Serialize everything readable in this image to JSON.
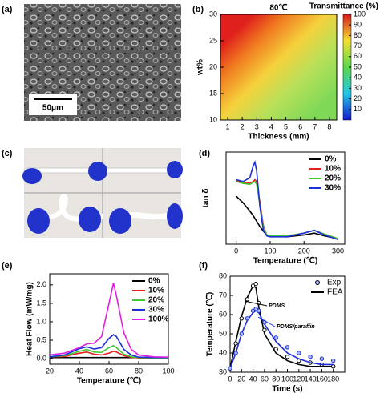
{
  "chart_data": [
    {
      "type": "image",
      "panel_label": "(a)",
      "scale_bar": "50μm"
    },
    {
      "type": "heatmap",
      "panel_label": "(b)",
      "title": "80℃",
      "colorbar_label": "Transmittance (%)",
      "x_label": "Thickness (mm)",
      "y_label": "wt%",
      "xlim": [
        0.5,
        8.5
      ],
      "xticks": [
        1,
        2,
        3,
        4,
        5,
        6,
        7,
        8
      ],
      "ylim": [
        10,
        30
      ],
      "yticks": [
        10,
        15,
        20,
        25,
        30
      ],
      "clim": [
        0,
        100
      ],
      "cticks": [
        10,
        20,
        30,
        40,
        50,
        60,
        70,
        80,
        90,
        100
      ]
    },
    {
      "type": "image",
      "panel_label": "(c)"
    },
    {
      "type": "line",
      "panel_label": "(d)",
      "x_label": "Temperature (℃)",
      "y_label": "tan δ",
      "x": [
        0,
        20,
        40,
        50,
        55,
        60,
        70,
        80,
        90,
        100,
        150,
        200,
        230,
        260,
        300
      ],
      "xlim": [
        -30,
        320
      ],
      "xticks": [
        0,
        100,
        200,
        300
      ],
      "ylim": [
        0,
        1
      ],
      "series": [
        {
          "name": "0%",
          "color": "#000000",
          "values": [
            0.52,
            0.45,
            0.36,
            0.31,
            0.28,
            0.25,
            0.19,
            0.14,
            0.1,
            0.09,
            0.08,
            0.1,
            0.12,
            0.09,
            0.06
          ]
        },
        {
          "name": "10%",
          "color": "#e8201c",
          "values": [
            0.69,
            0.67,
            0.66,
            0.68,
            0.7,
            0.68,
            0.45,
            0.2,
            0.1,
            0.09,
            0.09,
            0.12,
            0.15,
            0.11,
            0.06
          ]
        },
        {
          "name": "20%",
          "color": "#3fc832",
          "values": [
            0.68,
            0.66,
            0.65,
            0.67,
            0.68,
            0.65,
            0.42,
            0.18,
            0.1,
            0.09,
            0.09,
            0.12,
            0.15,
            0.11,
            0.06
          ]
        },
        {
          "name": "30%",
          "color": "#1c2fd8",
          "values": [
            0.7,
            0.68,
            0.72,
            0.85,
            0.89,
            0.8,
            0.4,
            0.15,
            0.09,
            0.08,
            0.08,
            0.12,
            0.15,
            0.1,
            0.05
          ]
        }
      ]
    },
    {
      "type": "line",
      "panel_label": "(e)",
      "x_label": "Temperature (℃)",
      "y_label": "Heat Flow (mW/mg)",
      "x": [
        20,
        30,
        40,
        45,
        50,
        55,
        60,
        63,
        65,
        70,
        75,
        80,
        90,
        100
      ],
      "xlim": [
        20,
        100
      ],
      "xticks": [
        20,
        40,
        60,
        80,
        100
      ],
      "ylim": [
        -0.15,
        2.3
      ],
      "yticks": [
        {
          "value": 0,
          "label": "0.0"
        },
        {
          "value": 0.5,
          "label": "0.5"
        },
        {
          "value": 1,
          "label": "1.0"
        },
        {
          "value": 1.5,
          "label": "1.5"
        },
        {
          "value": 2,
          "label": "2.0"
        }
      ],
      "series": [
        {
          "name": "0%",
          "color": "#000000",
          "values": [
            0.03,
            0.03,
            0.03,
            0.03,
            0.03,
            0.03,
            0.03,
            0.03,
            0.03,
            0.03,
            0.03,
            0.03,
            0.03,
            0.03
          ]
        },
        {
          "name": "10%",
          "color": "#e8201c",
          "values": [
            0.05,
            0.06,
            0.15,
            0.18,
            0.12,
            0.1,
            0.15,
            0.2,
            0.18,
            0.08,
            0.04,
            0.02,
            0.02,
            0.02
          ]
        },
        {
          "name": "20%",
          "color": "#3fc832",
          "values": [
            0.05,
            0.08,
            0.2,
            0.25,
            0.18,
            0.17,
            0.3,
            0.35,
            0.3,
            0.12,
            0.05,
            0.03,
            0.02,
            0.02
          ]
        },
        {
          "name": "30%",
          "color": "#1c2fd8",
          "values": [
            0.05,
            0.1,
            0.27,
            0.32,
            0.26,
            0.3,
            0.55,
            0.65,
            0.6,
            0.25,
            0.1,
            0.04,
            0.03,
            0.03
          ]
        },
        {
          "name": "100%",
          "color": "#e020e0",
          "values": [
            0.1,
            0.15,
            0.3,
            0.4,
            0.42,
            0.6,
            1.5,
            2.05,
            1.7,
            0.7,
            0.25,
            0.1,
            0.05,
            0.04
          ]
        }
      ]
    },
    {
      "type": "fit",
      "panel_label": "(f)",
      "x_label": "Time (s)",
      "y_label": "Temperature (℃)",
      "x": [
        0,
        10,
        20,
        30,
        40,
        45,
        50,
        60,
        80,
        100,
        120,
        140,
        160,
        180
      ],
      "xlim": [
        0,
        200
      ],
      "xticks": [
        0,
        20,
        40,
        60,
        80,
        100,
        120,
        140,
        160,
        180
      ],
      "ylim": [
        30,
        80
      ],
      "yticks": [
        30,
        40,
        50,
        60,
        70,
        80
      ],
      "legend": [
        "Exp.",
        "FEA"
      ],
      "groups": [
        {
          "label": "PDMS",
          "color": "#000000",
          "exp": [
            32,
            45,
            58,
            68,
            75,
            76,
            66,
            52,
            42,
            38,
            36,
            35,
            34,
            33
          ],
          "fea": [
            32,
            46,
            59,
            69,
            75,
            74,
            64,
            50,
            40,
            36,
            34,
            33,
            33,
            33
          ]
        },
        {
          "label": "PDMS/paraffin",
          "color": "#1c2fd8",
          "exp": [
            32,
            40,
            50,
            58,
            62,
            63,
            62,
            56,
            48,
            43,
            40,
            38,
            37,
            36
          ],
          "fea": [
            32,
            40,
            50,
            57,
            61,
            62,
            61,
            55,
            46,
            40,
            37,
            35,
            34,
            34
          ]
        }
      ]
    }
  ]
}
